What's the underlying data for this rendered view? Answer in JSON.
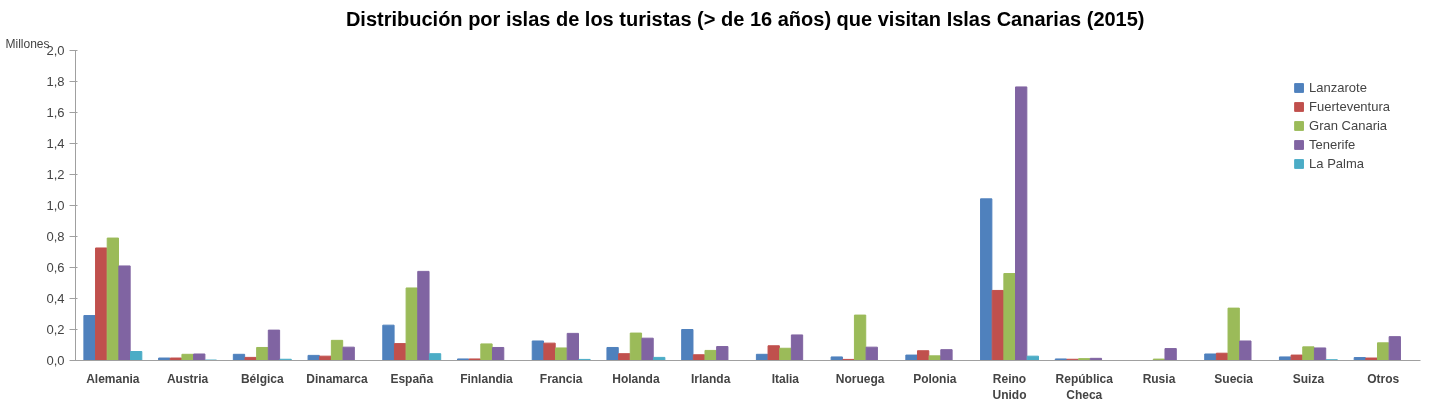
{
  "chart_data": {
    "type": "bar",
    "title": "Distribución por islas de los turistas (> de 16 años)  que visitan Islas Canarias (2015)",
    "ylabel": "Millones",
    "categories": [
      "Alemania",
      "Austria",
      "Bélgica",
      "Dinamarca",
      "España",
      "Finlandia",
      "Francia",
      "Holanda",
      "Irlanda",
      "Italia",
      "Noruega",
      "Polonia",
      "Reino Unido",
      "República Checa",
      "Rusia",
      "Suecia",
      "Suiza",
      "Otros"
    ],
    "series": [
      {
        "name": "Lanzarote",
        "color": "#4f81bd",
        "values": [
          0.29,
          0.016,
          0.04,
          0.033,
          0.228,
          0.01,
          0.126,
          0.084,
          0.2,
          0.04,
          0.023,
          0.035,
          1.043,
          0.01,
          null,
          0.042,
          0.023,
          0.019
        ]
      },
      {
        "name": "Fuerteventura",
        "color": "#c0504d",
        "values": [
          0.726,
          0.016,
          0.02,
          0.028,
          0.109,
          0.01,
          0.112,
          0.044,
          0.037,
          0.095,
          0.007,
          0.063,
          0.452,
          0.008,
          null,
          0.047,
          0.035,
          0.016
        ]
      },
      {
        "name": "Gran Canaria",
        "color": "#9bbb59",
        "values": [
          0.79,
          0.04,
          0.084,
          0.13,
          0.468,
          0.107,
          0.081,
          0.177,
          0.065,
          0.079,
          0.293,
          0.03,
          0.561,
          0.012,
          0.009,
          0.338,
          0.088,
          0.114
        ]
      },
      {
        "name": "Tenerife",
        "color": "#8064a2",
        "values": [
          0.61,
          0.042,
          0.196,
          0.086,
          0.575,
          0.084,
          0.175,
          0.144,
          0.09,
          0.165,
          0.086,
          0.07,
          1.765,
          0.014,
          0.077,
          0.126,
          0.081,
          0.154
        ]
      },
      {
        "name": "La Palma",
        "color": "#4bacc6",
        "values": [
          0.058,
          0.003,
          0.008,
          null,
          0.044,
          null,
          0.007,
          0.02,
          null,
          null,
          null,
          null,
          0.028,
          null,
          null,
          null,
          0.005,
          null
        ]
      }
    ],
    "ylim": [
      0,
      2.0
    ],
    "yticks": [
      {
        "value": 0,
        "label": "0,0"
      },
      {
        "value": 0.2,
        "label": "0,2"
      },
      {
        "value": 0.4,
        "label": "0,4"
      },
      {
        "value": 0.6,
        "label": "0,6"
      },
      {
        "value": 0.8,
        "label": "0,8"
      },
      {
        "value": 1.0,
        "label": "1,0"
      },
      {
        "value": 1.2,
        "label": "1,2"
      },
      {
        "value": 1.4,
        "label": "1,4"
      },
      {
        "value": 1.6,
        "label": "1,6"
      },
      {
        "value": 1.8,
        "label": "1,8"
      },
      {
        "value": 2.0,
        "label": "2,0"
      }
    ],
    "grid": false,
    "legend": "top right"
  }
}
